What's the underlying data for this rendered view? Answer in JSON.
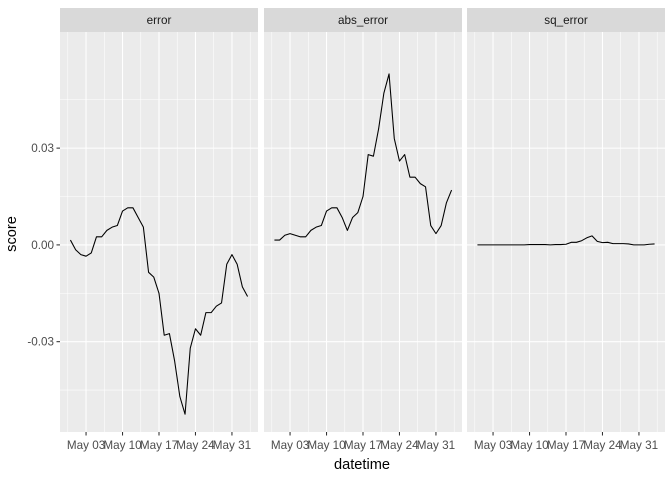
{
  "chart_data": {
    "type": "line",
    "facets": [
      "error",
      "abs_error",
      "sq_error"
    ],
    "xlabel": "datetime",
    "ylabel": "score",
    "x_ticks": [
      "May 03",
      "May 10",
      "May 17",
      "May 24",
      "May 31"
    ],
    "x_range": [
      "2016-04-28",
      "2016-06-05"
    ],
    "y_ticks": [
      -0.03,
      0.0,
      0.03
    ],
    "y_tick_labels": [
      "-0.03",
      "0.00",
      "0.03"
    ],
    "y_range": [
      -0.058,
      0.066
    ],
    "grid": true,
    "legend": "none",
    "series_color": "#000000",
    "series": [
      {
        "facet": "error",
        "x": [
          "2016-04-30",
          "2016-05-01",
          "2016-05-02",
          "2016-05-03",
          "2016-05-04",
          "2016-05-05",
          "2016-05-06",
          "2016-05-07",
          "2016-05-08",
          "2016-05-09",
          "2016-05-10",
          "2016-05-11",
          "2016-05-12",
          "2016-05-13",
          "2016-05-14",
          "2016-05-15",
          "2016-05-16",
          "2016-05-17",
          "2016-05-18",
          "2016-05-19",
          "2016-05-20",
          "2016-05-21",
          "2016-05-22",
          "2016-05-23",
          "2016-05-24",
          "2016-05-25",
          "2016-05-26",
          "2016-05-27",
          "2016-05-28",
          "2016-05-29",
          "2016-05-30",
          "2016-05-31",
          "2016-06-01",
          "2016-06-02",
          "2016-06-03"
        ],
        "y": [
          0.0015,
          -0.0015,
          -0.003,
          -0.0035,
          -0.0025,
          0.0025,
          0.0025,
          0.0045,
          0.0055,
          0.006,
          0.0105,
          0.0115,
          0.0115,
          0.0085,
          0.0055,
          -0.0085,
          -0.01,
          -0.015,
          -0.028,
          -0.0275,
          -0.036,
          -0.047,
          -0.0525,
          -0.032,
          -0.026,
          -0.028,
          -0.021,
          -0.021,
          -0.019,
          -0.018,
          -0.006,
          -0.003,
          -0.006,
          -0.013,
          -0.016
        ]
      },
      {
        "facet": "abs_error",
        "x": [
          "2016-04-30",
          "2016-05-01",
          "2016-05-02",
          "2016-05-03",
          "2016-05-04",
          "2016-05-05",
          "2016-05-06",
          "2016-05-07",
          "2016-05-08",
          "2016-05-09",
          "2016-05-10",
          "2016-05-11",
          "2016-05-12",
          "2016-05-13",
          "2016-05-14",
          "2016-05-15",
          "2016-05-16",
          "2016-05-17",
          "2016-05-18",
          "2016-05-19",
          "2016-05-20",
          "2016-05-21",
          "2016-05-22",
          "2016-05-23",
          "2016-05-24",
          "2016-05-25",
          "2016-05-26",
          "2016-05-27",
          "2016-05-28",
          "2016-05-29",
          "2016-05-30",
          "2016-05-31",
          "2016-06-01",
          "2016-06-02",
          "2016-06-03"
        ],
        "y": [
          0.0015,
          0.0015,
          0.003,
          0.0035,
          0.003,
          0.0025,
          0.0025,
          0.0045,
          0.0055,
          0.006,
          0.0105,
          0.0115,
          0.0115,
          0.0085,
          0.0045,
          0.0085,
          0.01,
          0.015,
          0.028,
          0.0275,
          0.036,
          0.047,
          0.053,
          0.033,
          0.026,
          0.028,
          0.021,
          0.021,
          0.019,
          0.018,
          0.006,
          0.0035,
          0.006,
          0.013,
          0.017
        ]
      },
      {
        "facet": "sq_error",
        "x": [
          "2016-04-30",
          "2016-05-01",
          "2016-05-02",
          "2016-05-03",
          "2016-05-04",
          "2016-05-05",
          "2016-05-06",
          "2016-05-07",
          "2016-05-08",
          "2016-05-09",
          "2016-05-10",
          "2016-05-11",
          "2016-05-12",
          "2016-05-13",
          "2016-05-14",
          "2016-05-15",
          "2016-05-16",
          "2016-05-17",
          "2016-05-18",
          "2016-05-19",
          "2016-05-20",
          "2016-05-21",
          "2016-05-22",
          "2016-05-23",
          "2016-05-24",
          "2016-05-25",
          "2016-05-26",
          "2016-05-27",
          "2016-05-28",
          "2016-05-29",
          "2016-05-30",
          "2016-05-31",
          "2016-06-01",
          "2016-06-02",
          "2016-06-03"
        ],
        "y": [
          0.0,
          0.0,
          0.0,
          0.0,
          0.0,
          0.0,
          0.0,
          0.0,
          0.0,
          0.0,
          0.0001,
          0.0001,
          0.0001,
          0.0001,
          0.0,
          0.0001,
          0.0001,
          0.0002,
          0.0008,
          0.0008,
          0.0013,
          0.0022,
          0.0028,
          0.0011,
          0.0007,
          0.0008,
          0.0004,
          0.0004,
          0.0004,
          0.0003,
          0.0,
          0.0,
          0.0,
          0.0002,
          0.0003
        ]
      }
    ]
  }
}
